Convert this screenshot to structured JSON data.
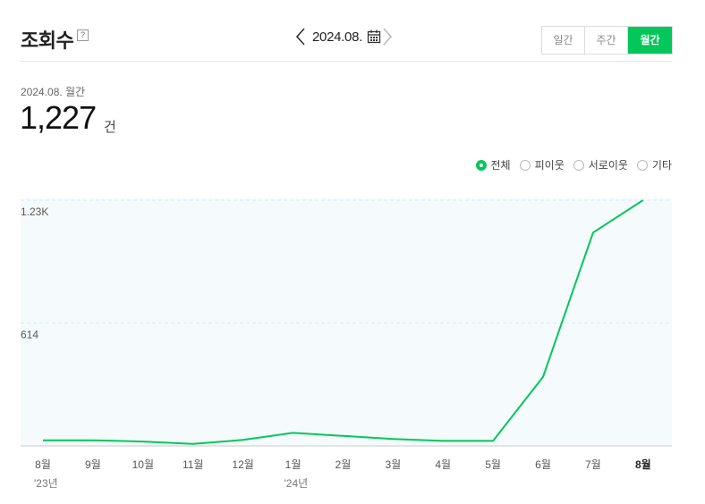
{
  "header": {
    "title": "조회수",
    "help_icon": "?",
    "date": "2024.08.",
    "tabs": [
      {
        "label": "일간",
        "active": false
      },
      {
        "label": "주간",
        "active": false
      },
      {
        "label": "월간",
        "active": true
      }
    ]
  },
  "summary": {
    "label": "2024.08. 월간",
    "value": "1,227",
    "unit": "건"
  },
  "legend": {
    "options": [
      {
        "label": "전체",
        "checked": true
      },
      {
        "label": "피이웃",
        "checked": false
      },
      {
        "label": "서로이웃",
        "checked": false
      },
      {
        "label": "기타",
        "checked": false
      }
    ]
  },
  "colors": {
    "accent": "#03c75a",
    "plot_background": "#f5fbfd",
    "grid": "#d8e9ef"
  },
  "chart_data": {
    "type": "line",
    "categories": [
      "8월",
      "9월",
      "10월",
      "11월",
      "12월",
      "1월",
      "2월",
      "3월",
      "4월",
      "5월",
      "6월",
      "7월",
      "8월"
    ],
    "year_labels": [
      "'23년",
      "",
      "",
      "",
      "",
      "'24년",
      "",
      "",
      "",
      "",
      "",
      "",
      ""
    ],
    "bold_category_index": 12,
    "series": [
      {
        "values": [
          28,
          28,
          22,
          10,
          30,
          65,
          50,
          35,
          25,
          25,
          345,
          1065,
          1227
        ]
      }
    ],
    "yticks": [
      {
        "value": 614,
        "label": "614"
      },
      {
        "value": 1227,
        "label": "1.23K"
      }
    ],
    "ylim": [
      0,
      1227
    ],
    "grid": true
  }
}
